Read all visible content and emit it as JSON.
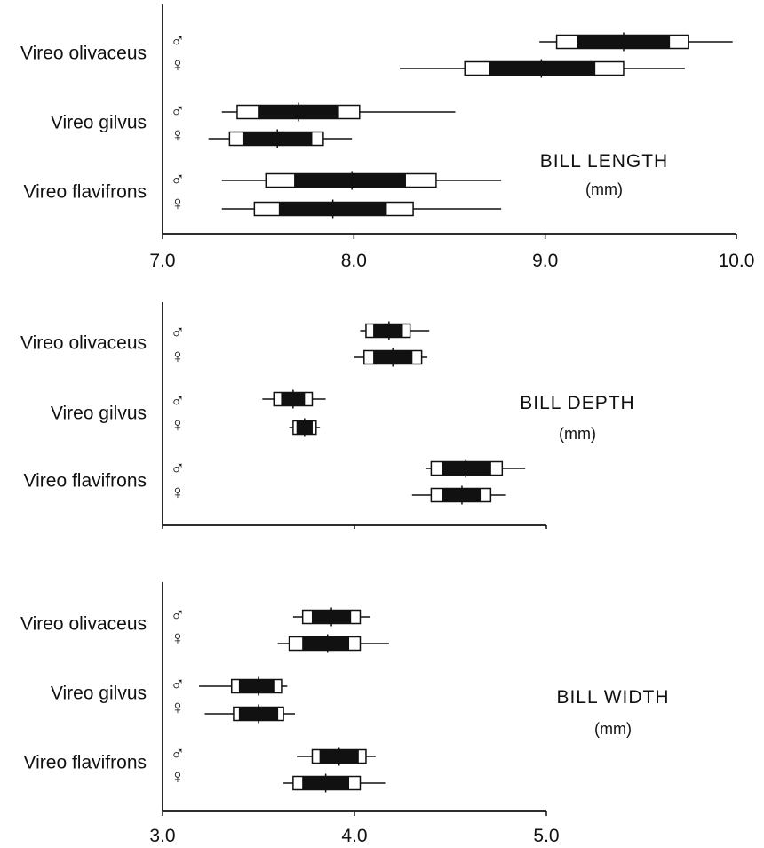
{
  "chart_data": [
    {
      "type": "box",
      "title": "BILL LENGTH",
      "unit": "(mm)",
      "xlim": [
        7.0,
        10.0
      ],
      "xticks": [
        "7.0",
        "8.0",
        "9.0",
        "10.0"
      ],
      "xtick_values": [
        7.0,
        8.0,
        9.0,
        10.0
      ],
      "species": [
        "Vireo olivaceus",
        "Vireo gilvus",
        "Vireo flavifrons"
      ],
      "boxes": [
        {
          "species": "Vireo olivaceus",
          "sex": "♂",
          "min": 8.97,
          "box_low": 9.06,
          "dark_low": 9.17,
          "mean": 9.41,
          "dark_high": 9.65,
          "box_high": 9.75,
          "max": 9.98
        },
        {
          "species": "Vireo olivaceus",
          "sex": "♀",
          "min": 8.24,
          "box_low": 8.58,
          "dark_low": 8.71,
          "mean": 8.98,
          "dark_high": 9.26,
          "box_high": 9.41,
          "max": 9.73
        },
        {
          "species": "Vireo gilvus",
          "sex": "♂",
          "min": 7.31,
          "box_low": 7.39,
          "dark_low": 7.5,
          "mean": 7.71,
          "dark_high": 7.92,
          "box_high": 8.03,
          "max": 8.53
        },
        {
          "species": "Vireo gilvus",
          "sex": "♀",
          "min": 7.24,
          "box_low": 7.35,
          "dark_low": 7.42,
          "mean": 7.6,
          "dark_high": 7.78,
          "box_high": 7.84,
          "max": 7.99
        },
        {
          "species": "Vireo flavifrons",
          "sex": "♂",
          "min": 7.31,
          "box_low": 7.54,
          "dark_low": 7.69,
          "mean": 7.99,
          "dark_high": 8.27,
          "box_high": 8.43,
          "max": 8.77
        },
        {
          "species": "Vireo flavifrons",
          "sex": "♀",
          "min": 7.31,
          "box_low": 7.48,
          "dark_low": 7.61,
          "mean": 7.89,
          "dark_high": 8.17,
          "box_high": 8.31,
          "max": 8.77
        }
      ]
    },
    {
      "type": "box",
      "title": "BILL DEPTH",
      "unit": "(mm)",
      "xlim": [
        3.0,
        5.0
      ],
      "xticks": [],
      "xtick_values": [
        3.0,
        4.0,
        5.0
      ],
      "species": [
        "Vireo olivaceus",
        "Vireo gilvus",
        "Vireo flavifrons"
      ],
      "boxes": [
        {
          "species": "Vireo olivaceus",
          "sex": "♂",
          "min": 4.03,
          "box_low": 4.06,
          "dark_low": 4.1,
          "mean": 4.18,
          "dark_high": 4.25,
          "box_high": 4.29,
          "max": 4.39
        },
        {
          "species": "Vireo olivaceus",
          "sex": "♀",
          "min": 4.0,
          "box_low": 4.05,
          "dark_low": 4.1,
          "mean": 4.2,
          "dark_high": 4.3,
          "box_high": 4.35,
          "max": 4.38
        },
        {
          "species": "Vireo gilvus",
          "sex": "♂",
          "min": 3.52,
          "box_low": 3.58,
          "dark_low": 3.62,
          "mean": 3.68,
          "dark_high": 3.74,
          "box_high": 3.78,
          "max": 3.85
        },
        {
          "species": "Vireo gilvus",
          "sex": "♀",
          "min": 3.66,
          "box_low": 3.68,
          "dark_low": 3.7,
          "mean": 3.74,
          "dark_high": 3.78,
          "box_high": 3.8,
          "max": 3.82
        },
        {
          "species": "Vireo flavifrons",
          "sex": "♂",
          "min": 4.37,
          "box_low": 4.4,
          "dark_low": 4.46,
          "mean": 4.58,
          "dark_high": 4.71,
          "box_high": 4.77,
          "max": 4.89
        },
        {
          "species": "Vireo flavifrons",
          "sex": "♀",
          "min": 4.3,
          "box_low": 4.4,
          "dark_low": 4.46,
          "mean": 4.56,
          "dark_high": 4.66,
          "box_high": 4.71,
          "max": 4.79
        }
      ]
    },
    {
      "type": "box",
      "title": "BILL WIDTH",
      "unit": "(mm)",
      "xlim": [
        3.0,
        5.0
      ],
      "xticks": [
        "3.0",
        "4.0",
        "5.0"
      ],
      "xtick_values": [
        3.0,
        4.0,
        5.0
      ],
      "species": [
        "Vireo olivaceus",
        "Vireo gilvus",
        "Vireo flavifrons"
      ],
      "boxes": [
        {
          "species": "Vireo olivaceus",
          "sex": "♂",
          "min": 3.68,
          "box_low": 3.73,
          "dark_low": 3.78,
          "mean": 3.88,
          "dark_high": 3.98,
          "box_high": 4.03,
          "max": 4.08
        },
        {
          "species": "Vireo olivaceus",
          "sex": "♀",
          "min": 3.6,
          "box_low": 3.66,
          "dark_low": 3.73,
          "mean": 3.86,
          "dark_high": 3.97,
          "box_high": 4.03,
          "max": 4.18
        },
        {
          "species": "Vireo gilvus",
          "sex": "♂",
          "min": 3.19,
          "box_low": 3.36,
          "dark_low": 3.4,
          "mean": 3.5,
          "dark_high": 3.58,
          "box_high": 3.62,
          "max": 3.65
        },
        {
          "species": "Vireo gilvus",
          "sex": "♀",
          "min": 3.22,
          "box_low": 3.37,
          "dark_low": 3.4,
          "mean": 3.5,
          "dark_high": 3.6,
          "box_high": 3.63,
          "max": 3.69
        },
        {
          "species": "Vireo flavifrons",
          "sex": "♂",
          "min": 3.7,
          "box_low": 3.78,
          "dark_low": 3.82,
          "mean": 3.92,
          "dark_high": 4.02,
          "box_high": 4.06,
          "max": 4.11
        },
        {
          "species": "Vireo flavifrons",
          "sex": "♀",
          "min": 3.63,
          "box_low": 3.68,
          "dark_low": 3.73,
          "mean": 3.85,
          "dark_high": 3.97,
          "box_high": 4.03,
          "max": 4.16
        }
      ]
    }
  ]
}
